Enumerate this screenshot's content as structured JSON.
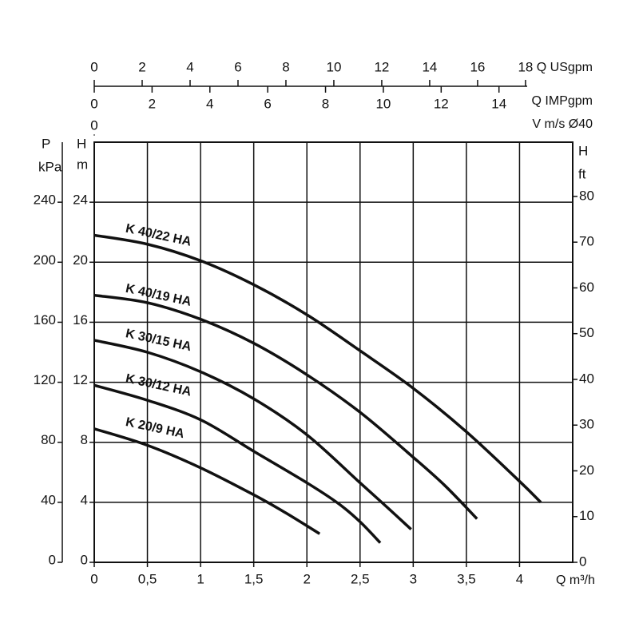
{
  "chart_data": {
    "type": "line",
    "x_label": "Q m³/h",
    "xlim": [
      0,
      4.5
    ],
    "xticks": [
      0,
      {
        "value": 0.5,
        "label": "0,5"
      },
      1,
      {
        "value": 1.5,
        "label": "1,5"
      },
      2,
      {
        "value": 2.5,
        "label": "2,5"
      },
      3,
      {
        "value": 3.5,
        "label": "3,5"
      },
      4
    ],
    "y_label": {
      "symbol": "H",
      "unit": "m"
    },
    "ylim": [
      0,
      28
    ],
    "yticks": [
      0,
      4,
      8,
      12,
      16,
      20,
      24
    ],
    "pressure_axis": {
      "symbol": "P",
      "unit": "kPa",
      "lim": [
        0,
        280
      ],
      "ticks": [
        0,
        40,
        80,
        120,
        160,
        200,
        240
      ]
    },
    "y2_label": {
      "symbol": "H",
      "unit": "ft"
    },
    "y2lim": [
      0,
      91.86
    ],
    "y2ticks": [
      0,
      10,
      20,
      30,
      40,
      50,
      60,
      70,
      80
    ],
    "top_axes": [
      {
        "label": "Q USgpm",
        "lim": [
          0,
          19.97
        ],
        "ticks": [
          0,
          2,
          4,
          6,
          8,
          10,
          12,
          14,
          16,
          18
        ]
      },
      {
        "label": "Q IMPgpm",
        "lim": [
          0,
          16.55
        ],
        "ticks": [
          0,
          2,
          4,
          6,
          8,
          10,
          12,
          14
        ]
      },
      {
        "label": "V m/s Ø40",
        "lim": [
          0,
          0.99
        ],
        "ticks": [
          0
        ]
      }
    ],
    "grid": true,
    "color": "#111111",
    "series": [
      {
        "name": "K 40/22 HA",
        "x": [
          0,
          0.5,
          1,
          1.5,
          2,
          2.5,
          3,
          3.5,
          4,
          4.2
        ],
        "values": [
          21.8,
          21.2,
          20.1,
          18.5,
          16.5,
          14.1,
          11.6,
          8.7,
          5.4,
          4
        ]
      },
      {
        "name": "K 40/19 HA",
        "x": [
          0,
          0.5,
          1,
          1.5,
          2,
          2.5,
          3,
          3.3,
          3.6
        ],
        "values": [
          17.8,
          17.3,
          16.2,
          14.6,
          12.5,
          10,
          7,
          5.1,
          2.9
        ]
      },
      {
        "name": "K 30/15 HA",
        "x": [
          0,
          0.5,
          1,
          1.5,
          2,
          2.5,
          2.75,
          2.98
        ],
        "values": [
          14.8,
          14,
          12.7,
          10.9,
          8.5,
          5.3,
          3.7,
          2.2
        ]
      },
      {
        "name": "K 30/12 HA",
        "x": [
          0,
          0.5,
          1,
          1.5,
          2,
          2.3,
          2.5,
          2.69
        ],
        "values": [
          11.8,
          10.8,
          9.5,
          7.4,
          5.3,
          3.9,
          2.7,
          1.3
        ]
      },
      {
        "name": "K 20/9 HA",
        "x": [
          0,
          0.5,
          1,
          1.5,
          1.8,
          2.12
        ],
        "values": [
          8.9,
          7.8,
          6.3,
          4.5,
          3.3,
          1.9
        ]
      }
    ]
  }
}
